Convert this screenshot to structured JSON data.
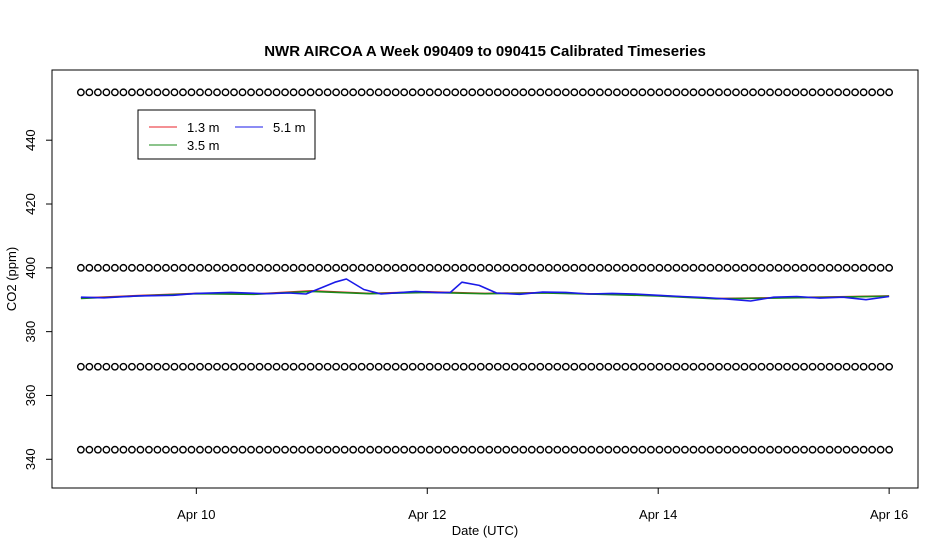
{
  "chart_data": {
    "type": "line",
    "title": "NWR AIRCOA A  Week 090409 to 090415  Calibrated Timeseries",
    "xlabel": "Date (UTC)",
    "ylabel": "CO2 (ppm)",
    "x_ticks": [
      {
        "value": 1,
        "label": "Apr 10"
      },
      {
        "value": 3,
        "label": "Apr 12"
      },
      {
        "value": 5,
        "label": "Apr 14"
      },
      {
        "value": 7,
        "label": "Apr 16"
      }
    ],
    "y_ticks": [
      340,
      360,
      380,
      400,
      420,
      440
    ],
    "xlim": [
      -0.25,
      7.25
    ],
    "ylim": [
      331,
      462
    ],
    "grid": false,
    "legend_position": "top-left",
    "series": [
      {
        "name": "1.3 m",
        "color": "#e8202a",
        "x": [
          0,
          0.5,
          1,
          1.5,
          2,
          2.5,
          3,
          3.5,
          4,
          4.5,
          5,
          5.5,
          6,
          6.5,
          7
        ],
        "y": [
          390.5,
          391.3,
          392.0,
          391.8,
          392.8,
          392.0,
          392.5,
          392.0,
          392.2,
          391.8,
          391.3,
          390.4,
          390.6,
          390.9,
          391.2
        ]
      },
      {
        "name": "3.5 m",
        "color": "#1a8a1a",
        "x": [
          0,
          0.5,
          1,
          1.5,
          2,
          2.5,
          3,
          3.5,
          4,
          4.5,
          5,
          5.5,
          6,
          6.5,
          7
        ],
        "y": [
          390.4,
          391.2,
          391.9,
          391.7,
          392.6,
          391.9,
          392.3,
          391.9,
          392.1,
          391.7,
          391.2,
          390.3,
          390.5,
          390.8,
          391.1
        ]
      },
      {
        "name": "5.1 m",
        "color": "#1a1ae8",
        "x": [
          0,
          0.2,
          0.5,
          0.8,
          1,
          1.3,
          1.6,
          1.8,
          1.95,
          2.1,
          2.2,
          2.3,
          2.45,
          2.6,
          2.75,
          2.9,
          3.1,
          3.2,
          3.3,
          3.45,
          3.6,
          3.8,
          4.0,
          4.2,
          4.4,
          4.6,
          4.8,
          5.0,
          5.2,
          5.4,
          5.6,
          5.8,
          6.0,
          6.2,
          6.4,
          6.6,
          6.8,
          7.0
        ],
        "y": [
          390.8,
          390.6,
          391.2,
          391.4,
          392.0,
          392.3,
          391.9,
          392.1,
          391.8,
          394.0,
          395.5,
          396.5,
          393.2,
          391.8,
          392.2,
          392.6,
          392.2,
          392.3,
          395.5,
          394.5,
          392.1,
          391.7,
          392.4,
          392.3,
          391.8,
          392.0,
          391.8,
          391.4,
          391.0,
          390.7,
          390.2,
          389.6,
          390.8,
          391.0,
          390.5,
          390.8,
          390.0,
          391.0
        ]
      }
    ],
    "reference_markers": {
      "symbol": "o",
      "color": "#000000",
      "levels": [
        455,
        400,
        369,
        343
      ],
      "x_start": 0,
      "x_end": 7,
      "count_per_level": 96
    }
  }
}
